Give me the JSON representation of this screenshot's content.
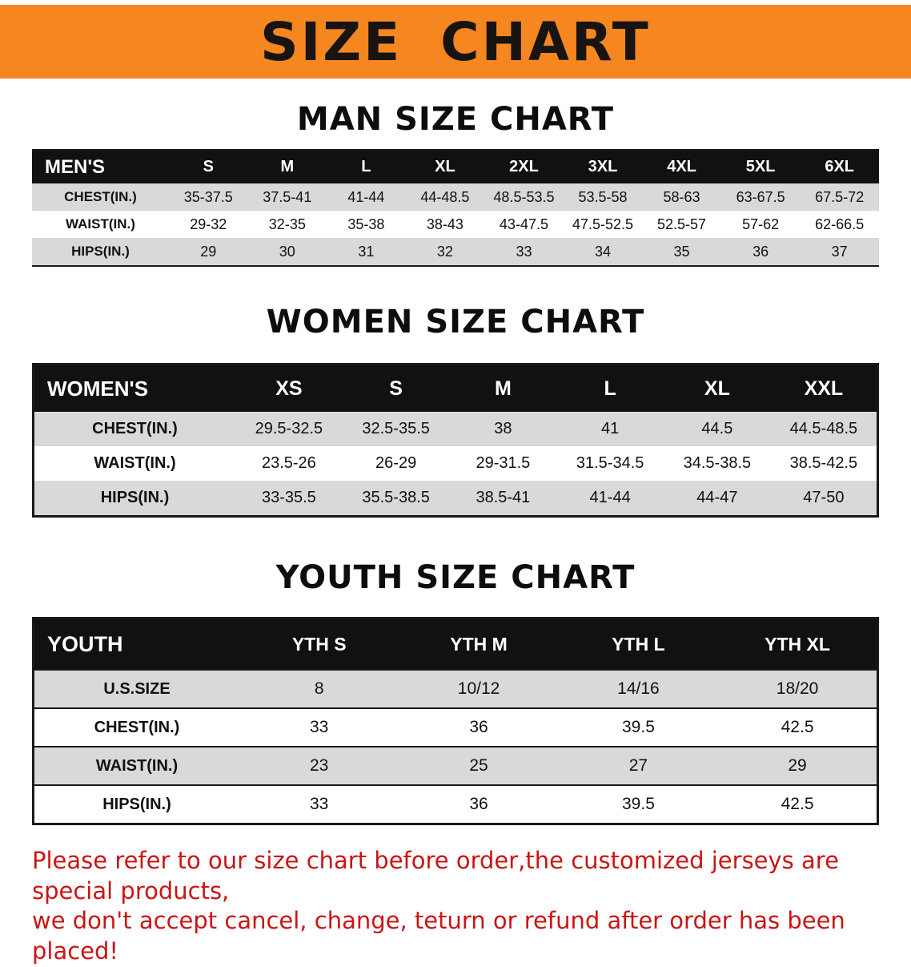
{
  "banner": {
    "title": "SIZE CHART"
  },
  "chart_data": [
    {
      "type": "table",
      "title": "MAN SIZE CHART",
      "columns": [
        "MEN'S",
        "S",
        "M",
        "L",
        "XL",
        "2XL",
        "3XL",
        "4XL",
        "5XL",
        "6XL"
      ],
      "rows": [
        [
          "CHEST(IN.)",
          "35-37.5",
          "37.5-41",
          "41-44",
          "44-48.5",
          "48.5-53.5",
          "53.5-58",
          "58-63",
          "63-67.5",
          "67.5-72"
        ],
        [
          "WAIST(IN.)",
          "29-32",
          "32-35",
          "35-38",
          "38-43",
          "43-47.5",
          "47.5-52.5",
          "52.5-57",
          "57-62",
          "62-66.5"
        ],
        [
          "HIPS(IN.)",
          "29",
          "30",
          "31",
          "32",
          "33",
          "34",
          "35",
          "36",
          "37"
        ]
      ]
    },
    {
      "type": "table",
      "title": "WOMEN SIZE CHART",
      "columns": [
        "WOMEN'S",
        "XS",
        "S",
        "M",
        "L",
        "XL",
        "XXL"
      ],
      "rows": [
        [
          "CHEST(IN.)",
          "29.5-32.5",
          "32.5-35.5",
          "38",
          "41",
          "44.5",
          "44.5-48.5"
        ],
        [
          "WAIST(IN.)",
          "23.5-26",
          "26-29",
          "29-31.5",
          "31.5-34.5",
          "34.5-38.5",
          "38.5-42.5"
        ],
        [
          "HIPS(IN.)",
          "33-35.5",
          "35.5-38.5",
          "38.5-41",
          "41-44",
          "44-47",
          "47-50"
        ]
      ]
    },
    {
      "type": "table",
      "title": "YOUTH SIZE CHART",
      "columns": [
        "YOUTH",
        "YTH S",
        "YTH M",
        "YTH L",
        "YTH XL"
      ],
      "rows": [
        [
          "U.S.SIZE",
          "8",
          "10/12",
          "14/16",
          "18/20"
        ],
        [
          "CHEST(IN.)",
          "33",
          "36",
          "39.5",
          "42.5"
        ],
        [
          "WAIST(IN.)",
          "23",
          "25",
          "27",
          "29"
        ],
        [
          "HIPS(IN.)",
          "33",
          "36",
          "39.5",
          "42.5"
        ]
      ]
    }
  ],
  "footer": {
    "line1": "Please refer to our size chart before order,the customized jerseys are special products,",
    "line2": "we don't accept cancel, change, teturn or refund after order has been placed!"
  },
  "colors": {
    "banner_bg": "#f6861f",
    "header_row_bg": "#111111",
    "zebra_row_bg": "#d9d9d9",
    "notice_text": "#cc1414"
  }
}
